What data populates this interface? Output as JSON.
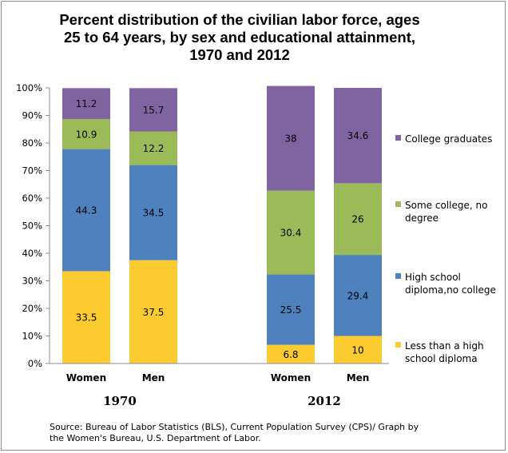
{
  "chart_data": {
    "type": "bar",
    "stacked": true,
    "normalized": true,
    "title": [
      "Percent distribution of the civilian labor force, ages",
      "25 to 64 years, by sex and educational attainment,",
      "1970 and 2012"
    ],
    "categories": [
      "Women",
      "Men",
      "Women",
      "Men"
    ],
    "groups": [
      "1970",
      "1970",
      "2012",
      "2012"
    ],
    "group_labels": [
      "1970",
      "2012"
    ],
    "yticks": [
      "0%",
      "10%",
      "20%",
      "30%",
      "40%",
      "50%",
      "60%",
      "70%",
      "80%",
      "90%",
      "100%"
    ],
    "ylim": [
      0,
      100
    ],
    "grid": false,
    "legend_position": "right",
    "series": [
      {
        "name": "Less than a high school diploma",
        "legend": [
          "Less than a high",
          "school diploma"
        ],
        "color": "#FCCB2F",
        "values": [
          33.5,
          37.5,
          6.8,
          10
        ]
      },
      {
        "name": "High school diploma,no college",
        "legend": [
          "High school",
          "diploma,no college"
        ],
        "color": "#4E81BD",
        "values": [
          44.3,
          34.5,
          25.5,
          29.4
        ]
      },
      {
        "name": "Some college, no degree",
        "legend": [
          "Some college, no",
          "degree"
        ],
        "color": "#9BBB59",
        "values": [
          10.9,
          12.2,
          30.4,
          26
        ]
      },
      {
        "name": "College graduates",
        "legend": [
          "College graduates"
        ],
        "color": "#8064A2",
        "values": [
          11.2,
          15.7,
          38,
          34.6
        ]
      }
    ]
  },
  "source": [
    "Source: Bureau of Labor Statistics (BLS), Current Population Survey (CPS)/ Graph by",
    "the Women's Bureau, U.S. Department of Labor."
  ]
}
